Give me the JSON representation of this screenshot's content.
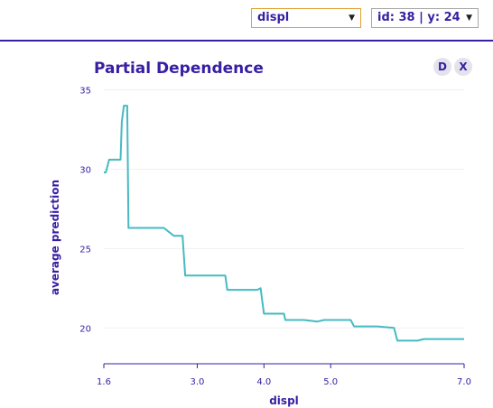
{
  "controls": {
    "variable_select": "displ",
    "observation_select": "id: 38 | y: 24",
    "d_button": "D",
    "x_button": "X"
  },
  "chart_data": {
    "type": "line",
    "title": "Partial Dependence",
    "xlabel": "displ",
    "ylabel": "average prediction",
    "xlim": [
      1.6,
      7.0
    ],
    "ylim": [
      17.8,
      35.2
    ],
    "x_ticks": [
      1.6,
      3.0,
      4.0,
      5.0,
      7.0
    ],
    "x_tick_labels": [
      "1.6",
      "3.0",
      "4.0",
      "5.0",
      "7.0"
    ],
    "y_ticks": [
      20,
      25,
      30,
      35
    ],
    "y_tick_labels": [
      "20",
      "25",
      "30",
      "35"
    ],
    "grid": true,
    "color": "#46bac2",
    "axis_color": "#371ea3",
    "series": [
      {
        "x": [
          1.6,
          1.63,
          1.68,
          1.75,
          1.85,
          1.87,
          1.9,
          1.92,
          1.95,
          1.97,
          2.0,
          2.05,
          2.1,
          2.3,
          2.5,
          2.65,
          2.72,
          2.78,
          2.8,
          2.82,
          2.85,
          2.9,
          3.1,
          3.3,
          3.42,
          3.45,
          3.5,
          3.7,
          3.85,
          3.9,
          3.95,
          4.0,
          4.2,
          4.3,
          4.32,
          4.4,
          4.6,
          4.8,
          4.9,
          5.1,
          5.3,
          5.35,
          5.4,
          5.7,
          5.95,
          6.0,
          6.05,
          6.3,
          6.4,
          6.5,
          6.7,
          7.0
        ],
        "y": [
          29.8,
          29.8,
          30.6,
          30.6,
          30.6,
          33.0,
          34.0,
          34.0,
          34.0,
          26.3,
          26.3,
          26.3,
          26.3,
          26.3,
          26.3,
          25.8,
          25.8,
          25.8,
          24.5,
          23.3,
          23.3,
          23.3,
          23.3,
          23.3,
          23.3,
          22.4,
          22.4,
          22.4,
          22.4,
          22.4,
          22.5,
          20.9,
          20.9,
          20.9,
          20.5,
          20.5,
          20.5,
          20.4,
          20.5,
          20.5,
          20.5,
          20.1,
          20.1,
          20.1,
          20.0,
          19.2,
          19.2,
          19.2,
          19.3,
          19.3,
          19.3,
          19.3
        ]
      }
    ]
  }
}
